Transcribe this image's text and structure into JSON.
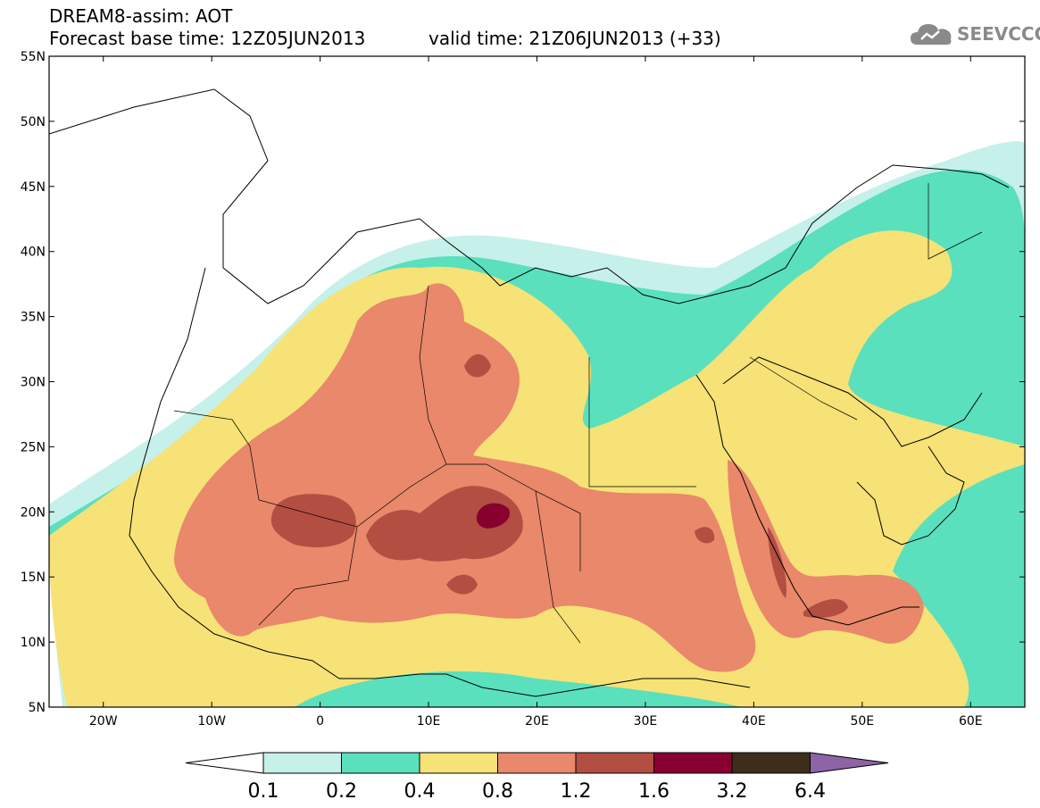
{
  "header": {
    "title": "DREAM8-assim: AOT",
    "base_time": "Forecast base time: 12Z05JUN2013",
    "valid_time": "valid time: 21Z06JUN2013 (+33)",
    "logo_text": "SEEVCCC"
  },
  "map": {
    "lat_labels": [
      "55N",
      "50N",
      "45N",
      "40N",
      "35N",
      "30N",
      "25N",
      "20N",
      "15N",
      "10N",
      "5N"
    ],
    "lon_labels": [
      "20W",
      "10W",
      "0",
      "10E",
      "20E",
      "30E",
      "40E",
      "50E",
      "60E"
    ],
    "lat_range": [
      5,
      55
    ],
    "lon_range": [
      -25,
      65
    ],
    "variable": "AOT"
  },
  "legend": {
    "levels": [
      "0.1",
      "0.2",
      "0.4",
      "0.8",
      "1.2",
      "1.6",
      "3.2",
      "6.4"
    ],
    "colors": [
      "#ffffff",
      "#c6f0ea",
      "#5ae0bd",
      "#f6e276",
      "#e9886a",
      "#b34e42",
      "#870030",
      "#3f2d1c",
      "#8d64a6"
    ]
  }
}
